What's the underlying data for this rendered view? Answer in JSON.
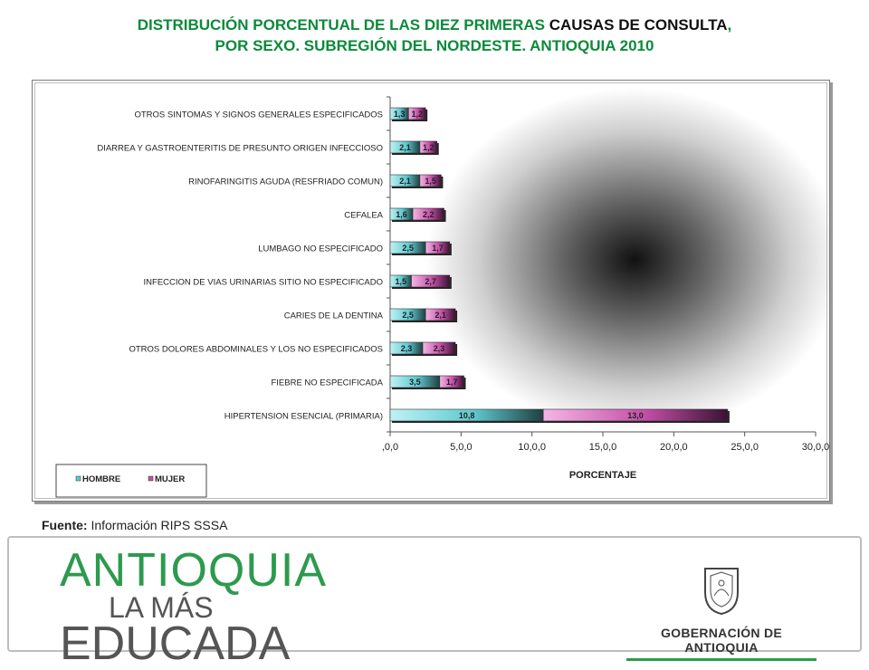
{
  "title_line1_a": "DISTRIBUCIÓN PORCENTUAL DE LAS DIEZ PRIMERAS ",
  "title_line1_b": "CAUSAS DE CONSULTA",
  "title_line1_c": ",",
  "title_line2": "POR SEXO. SUBREGIÓN DEL  NORDESTE. ANTIOQUIA 2010",
  "source_label": "Fuente:",
  "source_text": " Información RIPS SSSA",
  "logo": {
    "line1": "ANTIOQUIA",
    "line2": "LA MÁS",
    "line3": "EDUCADA"
  },
  "government": "GOBERNACIÓN DE ANTIOQUIA",
  "colors": {
    "hombre": "#5ec8cf",
    "mujer": "#c54fa8",
    "title": "#0b8a3a"
  },
  "chart_data": {
    "type": "bar",
    "orientation": "horizontal",
    "stacked": true,
    "title": "DISTRIBUCIÓN PORCENTUAL DE LAS DIEZ PRIMERAS CAUSAS DE CONSULTA, POR SEXO. SUBREGIÓN DEL  NORDESTE. ANTIOQUIA 2010",
    "xlabel": "PORCENTAJE",
    "ylabel": "",
    "xlim": [
      0,
      30
    ],
    "xticks": [
      ",0,0",
      "5,0,0",
      "10,0,0",
      "15,0,0",
      "20,0,0",
      "25,0,0",
      "30,0,0"
    ],
    "legend_position": "bottom-left",
    "categories": [
      "OTROS SINTOMAS Y SIGNOS GENERALES ESPECIFICADOS",
      "DIARREA Y GASTROENTERITIS DE PRESUNTO ORIGEN INFECCIOSO",
      "RINOFARINGITIS AGUDA (RESFRIADO COMUN)",
      "CEFALEA",
      "LUMBAGO NO ESPECIFICADO",
      "INFECCION DE VIAS URINARIAS  SITIO NO ESPECIFICADO",
      "CARIES DE LA DENTINA",
      "OTROS DOLORES ABDOMINALES Y LOS NO ESPECIFICADOS",
      "FIEBRE  NO ESPECIFICADA",
      "HIPERTENSION ESENCIAL (PRIMARIA)"
    ],
    "series": [
      {
        "name": "HOMBRE",
        "values": [
          1.3,
          2.1,
          2.1,
          1.6,
          2.5,
          1.5,
          2.5,
          2.3,
          3.5,
          10.8
        ],
        "labels": [
          "1,3",
          "2,1",
          "2,1",
          "1,6",
          "2,5",
          "1,5",
          "2,5",
          "2,3",
          "3,5",
          "10,8"
        ]
      },
      {
        "name": "MUJER",
        "values": [
          1.2,
          1.2,
          1.5,
          2.2,
          1.7,
          2.7,
          2.1,
          2.3,
          1.7,
          13.0
        ],
        "labels": [
          "1,2",
          "1,2",
          "1,5",
          "2,2",
          "1,7",
          "2,7",
          "2,1",
          "2,3",
          "1,7",
          "13,0"
        ]
      }
    ]
  }
}
